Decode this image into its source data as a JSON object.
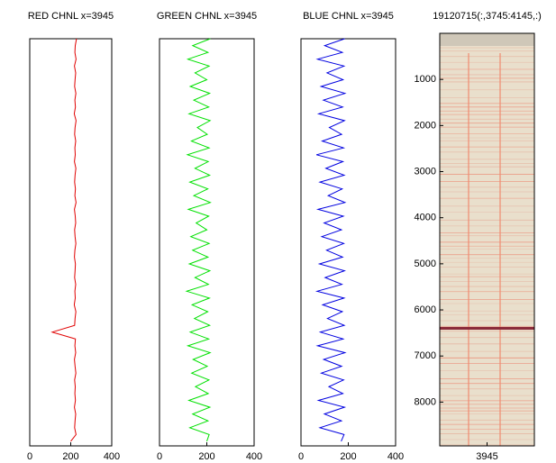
{
  "chart_data": [
    {
      "type": "line",
      "title": "RED CHNL x=3945",
      "orientation": "vertical",
      "color": "#e00000",
      "x": [
        0,
        150,
        300,
        450,
        600,
        750,
        900,
        1050,
        1200,
        1350,
        1500,
        1650,
        1800,
        1950,
        2100,
        2250,
        2400,
        2550,
        2700,
        2850,
        3000,
        3150,
        3300,
        3450,
        3600,
        3750,
        3900,
        4050,
        4200,
        4350,
        4500,
        4650,
        4800,
        4950,
        5100,
        5250,
        5400,
        5550,
        5700,
        5850,
        6000,
        6150,
        6300,
        6450,
        6600,
        6750,
        6900,
        7050,
        7200,
        7350,
        7500,
        7650,
        7800,
        7950,
        8100,
        8250,
        8400,
        8550,
        8700,
        8850
      ],
      "values": [
        228,
        222,
        220,
        226,
        218,
        224,
        221,
        219,
        225,
        220,
        223,
        217,
        226,
        221,
        219,
        224,
        220,
        222,
        218,
        225,
        221,
        219,
        223,
        220,
        226,
        218,
        222,
        224,
        219,
        221,
        225,
        220,
        218,
        223,
        221,
        219,
        224,
        220,
        222,
        217,
        225,
        221,
        219,
        110,
        223,
        220,
        224,
        218,
        221,
        225,
        219,
        222,
        220,
        223,
        218,
        224,
        221,
        219,
        226,
        200
      ],
      "xlim": [
        0,
        400
      ],
      "xticks": [
        0,
        200,
        400
      ],
      "ylim": [
        0,
        8950
      ],
      "y_reversed": true
    },
    {
      "type": "line",
      "title": "GREEN CHNL x=3945",
      "orientation": "vertical",
      "color": "#00e000",
      "x": [
        0,
        150,
        300,
        450,
        600,
        750,
        900,
        1050,
        1200,
        1350,
        1500,
        1650,
        1800,
        1950,
        2100,
        2250,
        2400,
        2550,
        2700,
        2850,
        3000,
        3150,
        3300,
        3450,
        3600,
        3750,
        3900,
        4050,
        4200,
        4350,
        4500,
        4650,
        4800,
        4950,
        5100,
        5250,
        5400,
        5550,
        5700,
        5850,
        6000,
        6150,
        6300,
        6450,
        6600,
        6750,
        6900,
        7050,
        7200,
        7350,
        7500,
        7650,
        7800,
        7950,
        8100,
        8250,
        8400,
        8550,
        8700,
        8850
      ],
      "values": [
        215,
        140,
        205,
        120,
        210,
        150,
        200,
        130,
        212,
        145,
        208,
        125,
        214,
        160,
        202,
        135,
        210,
        118,
        206,
        150,
        212,
        128,
        204,
        145,
        215,
        122,
        208,
        155,
        200,
        132,
        210,
        140,
        205,
        126,
        213,
        150,
        207,
        115,
        211,
        138,
        204,
        148,
        212,
        130,
        208,
        120,
        214,
        142,
        202,
        136,
        209,
        152,
        206,
        124,
        213,
        140,
        205,
        128,
        210,
        200
      ],
      "xlim": [
        0,
        400
      ],
      "xticks": [
        0,
        200,
        400
      ],
      "ylim": [
        0,
        8950
      ],
      "y_reversed": true
    },
    {
      "type": "line",
      "title": "BLUE CHNL x=3945",
      "orientation": "vertical",
      "color": "#0000e0",
      "x": [
        0,
        150,
        300,
        450,
        600,
        750,
        900,
        1050,
        1200,
        1350,
        1500,
        1650,
        1800,
        1950,
        2100,
        2250,
        2400,
        2550,
        2700,
        2850,
        3000,
        3150,
        3300,
        3450,
        3600,
        3750,
        3900,
        4050,
        4200,
        4350,
        4500,
        4650,
        4800,
        4950,
        5100,
        5250,
        5400,
        5550,
        5700,
        5850,
        6000,
        6150,
        6300,
        6450,
        6600,
        6750,
        6900,
        7050,
        7200,
        7350,
        7500,
        7650,
        7800,
        7950,
        8100,
        8250,
        8400,
        8550,
        8700,
        8850
      ],
      "values": [
        185,
        100,
        175,
        70,
        182,
        110,
        178,
        85,
        186,
        95,
        176,
        75,
        184,
        120,
        172,
        90,
        180,
        65,
        177,
        105,
        183,
        80,
        174,
        115,
        186,
        72,
        179,
        98,
        171,
        88,
        181,
        108,
        176,
        78,
        184,
        102,
        173,
        68,
        182,
        92,
        175,
        112,
        183,
        82,
        178,
        70,
        186,
        96,
        172,
        86,
        180,
        118,
        177,
        74,
        184,
        99,
        171,
        80,
        182,
        170
      ],
      "xlim": [
        0,
        400
      ],
      "xticks": [
        0,
        200,
        400
      ],
      "ylim": [
        0,
        8950
      ],
      "y_reversed": true
    },
    {
      "type": "image",
      "title": "19120715(:,3745:4145,:)",
      "xlim": [
        3745,
        4145
      ],
      "xticks": [
        3945
      ],
      "ylim": [
        0,
        8950
      ],
      "y_reversed": true,
      "yticks": [
        1000,
        2000,
        3000,
        4000,
        5000,
        6000,
        7000,
        8000
      ]
    }
  ]
}
